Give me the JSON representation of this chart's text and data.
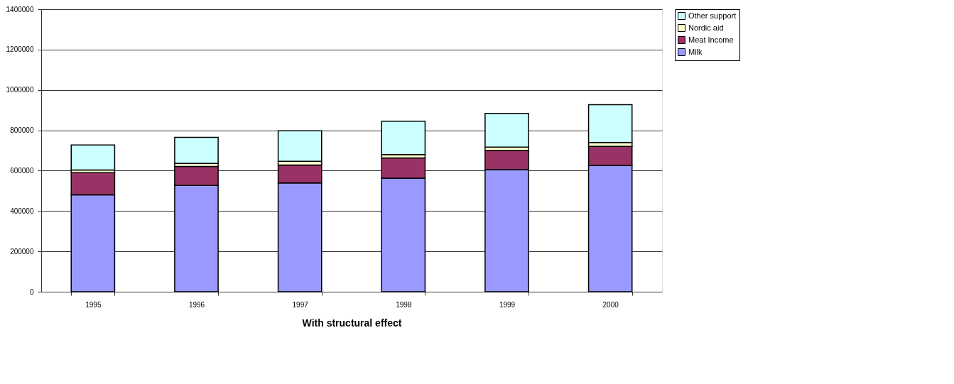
{
  "chart_data": {
    "type": "bar",
    "stacked": true,
    "xlabel": "With structural effect",
    "categories": [
      "1995",
      "1996",
      "1997",
      "1998",
      "1999",
      "2000"
    ],
    "series": [
      {
        "name": "Milk",
        "color": "#9999ff",
        "values": [
          480000,
          527000,
          539000,
          563000,
          605000,
          625000
        ]
      },
      {
        "name": "Meat Income",
        "color": "#993366",
        "values": [
          110000,
          94000,
          89000,
          100000,
          95000,
          95000
        ]
      },
      {
        "name": "Nordic aid",
        "color": "#ffffcc",
        "values": [
          13000,
          15000,
          18000,
          17000,
          17000,
          20000
        ]
      },
      {
        "name": "Other support",
        "color": "#ccffff",
        "values": [
          124000,
          129000,
          152000,
          165000,
          167000,
          187000
        ]
      }
    ],
    "ylim": [
      0,
      1400000
    ],
    "yticks": [
      0,
      200000,
      400000,
      600000,
      800000,
      1000000,
      1200000,
      1400000
    ],
    "grid": "y",
    "legend": "right"
  }
}
